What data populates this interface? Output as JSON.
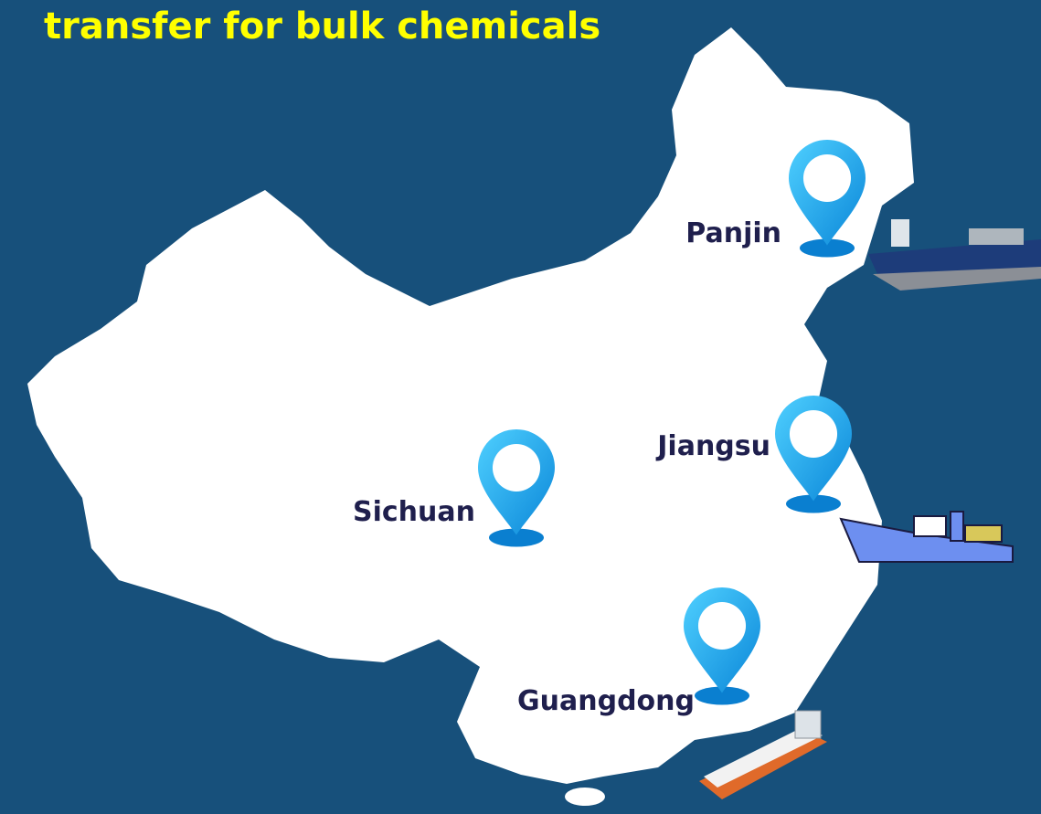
{
  "title": "transfer for bulk chemicals",
  "locations": [
    {
      "label": "Panjin"
    },
    {
      "label": "Jiangsu"
    },
    {
      "label": "Sichuan"
    },
    {
      "label": "Guangdong"
    }
  ]
}
